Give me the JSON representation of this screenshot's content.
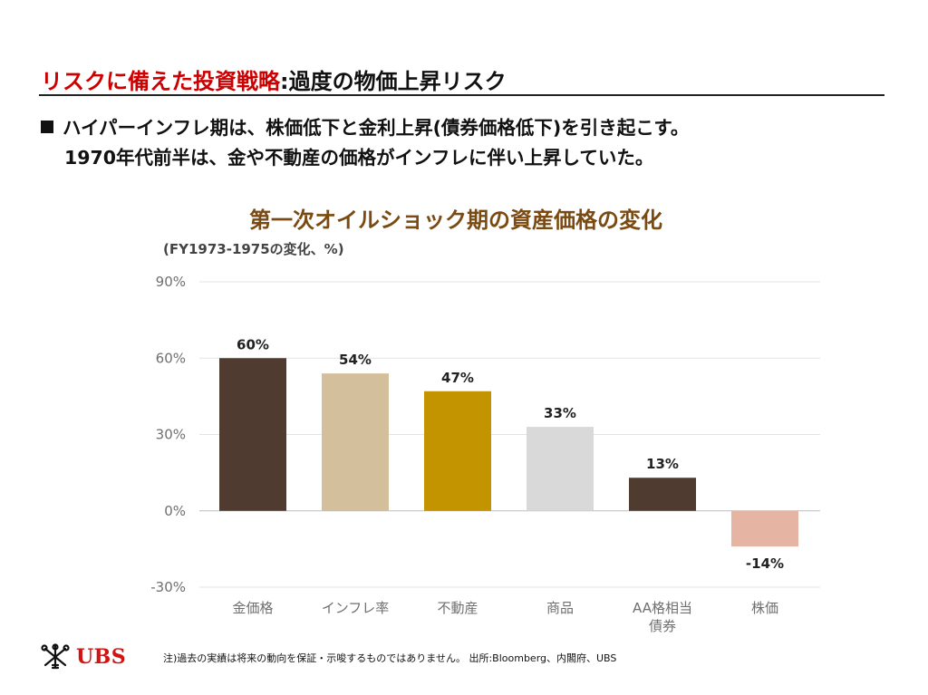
{
  "slide": {
    "title_highlight": "リスクに備えた投資戦略",
    "title_rest": ":過度の物価上昇リスク",
    "bullet_line1": "ハイパーインフレ期は、株価低下と金利上昇(債券価格低下)を引き起こす。",
    "bullet_line2": "1970年代前半は、金や不動産の価格がインフレに伴い上昇していた。",
    "footnote": "注)過去の実績は将来の動向を保証・示唆するものではありません。 出所:Bloomberg、内閣府、UBS",
    "logo_text": "UBS"
  },
  "colors": {
    "title_red": "#cc0000",
    "chart_title_brown": "#7a4a12",
    "logo_red": "#d21313"
  },
  "chart_data": {
    "type": "bar",
    "title": "第一次オイルショック期の資産価格の変化",
    "subtitle": "(FY1973-1975の変化、%)",
    "categories": [
      "金価格",
      "インフレ率",
      "不動産",
      "商品",
      "AA格相当\n債券",
      "株価"
    ],
    "values": [
      60,
      54,
      47,
      33,
      13,
      -14
    ],
    "data_labels": [
      "60%",
      "54%",
      "47%",
      "33%",
      "13%",
      "-14%"
    ],
    "bar_colors": [
      "#4f3b30",
      "#d3bf9c",
      "#c49400",
      "#d9d9d9",
      "#4f3b30",
      "#e6b4a3"
    ],
    "yticks": [
      90,
      60,
      30,
      0,
      -30
    ],
    "ytick_labels": [
      "90%",
      "60%",
      "30%",
      "0%",
      "-30%"
    ],
    "ylim": [
      -30,
      90
    ],
    "grid": true,
    "legend": "none"
  }
}
